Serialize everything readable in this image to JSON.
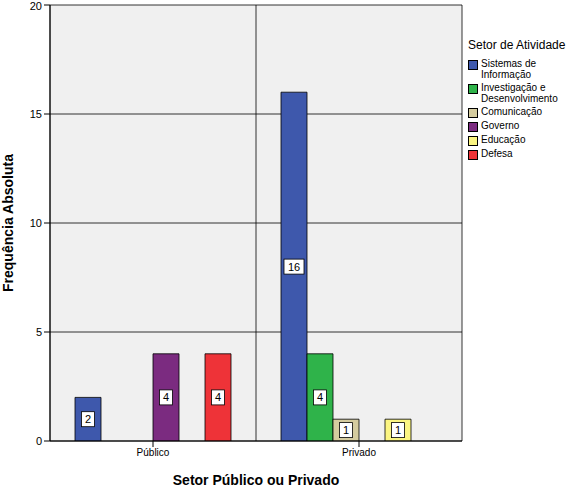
{
  "chart_data": {
    "type": "bar",
    "categories": [
      "Público",
      "Privado"
    ],
    "series": [
      {
        "name": "Sistemas de Informação",
        "color": "#3e58ac",
        "values": [
          2,
          16
        ]
      },
      {
        "name": "Investigação e Desenvolvimento",
        "color": "#2fb34a",
        "values": [
          null,
          4
        ]
      },
      {
        "name": "Comunicação",
        "color": "#d5cc9f",
        "values": [
          null,
          1
        ]
      },
      {
        "name": "Governo",
        "color": "#7b2b80",
        "values": [
          4,
          null
        ]
      },
      {
        "name": "Educação",
        "color": "#fbf582",
        "values": [
          null,
          1
        ]
      },
      {
        "name": "Defesa",
        "color": "#ee3338",
        "values": [
          4,
          null
        ]
      }
    ],
    "x_label": "Setor Público ou Privado",
    "y_label": "Frequência Absoluta",
    "legend_title": "Setor de Atividade",
    "legend": "right",
    "ylim": [
      0,
      20
    ],
    "yticks": [
      0,
      5,
      10,
      15,
      20
    ],
    "grid": true,
    "data_labels": true
  }
}
